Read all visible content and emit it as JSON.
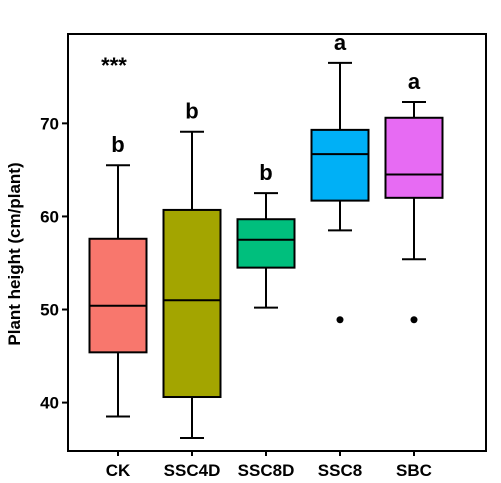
{
  "chart_data": {
    "type": "box",
    "title": "",
    "xlabel": "",
    "ylabel": "Plant height (cm/plant)",
    "ylim": [
      34.8,
      79.6
    ],
    "yticks": [
      40,
      50,
      60,
      70
    ],
    "significance_label": "***",
    "grid": false,
    "categories": [
      "CK",
      "SSC4D",
      "SSC8D",
      "SSC8",
      "SBC"
    ],
    "boxes": [
      {
        "category": "CK",
        "whisker_low": 38.5,
        "q1": 45.4,
        "median": 50.4,
        "q3": 57.6,
        "whisker_high": 65.5,
        "outliers": [],
        "letter": "b",
        "color": "#f8776d"
      },
      {
        "category": "SSC4D",
        "whisker_low": 36.2,
        "q1": 40.6,
        "median": 51.0,
        "q3": 60.7,
        "whisker_high": 69.1,
        "outliers": [],
        "letter": "b",
        "color": "#a3a500"
      },
      {
        "category": "SSC8D",
        "whisker_low": 50.2,
        "q1": 54.5,
        "median": 57.5,
        "q3": 59.7,
        "whisker_high": 62.5,
        "outliers": [],
        "letter": "b",
        "color": "#00bf7d"
      },
      {
        "category": "SSC8",
        "whisker_low": 58.5,
        "q1": 61.7,
        "median": 66.7,
        "q3": 69.3,
        "whisker_high": 76.5,
        "outliers": [
          48.9
        ],
        "letter": "a",
        "color": "#00b0f6"
      },
      {
        "category": "SBC",
        "whisker_low": 55.4,
        "q1": 62.0,
        "median": 64.5,
        "q3": 70.6,
        "whisker_high": 72.3,
        "outliers": [
          48.9
        ],
        "letter": "a",
        "color": "#e76bf3"
      }
    ]
  }
}
